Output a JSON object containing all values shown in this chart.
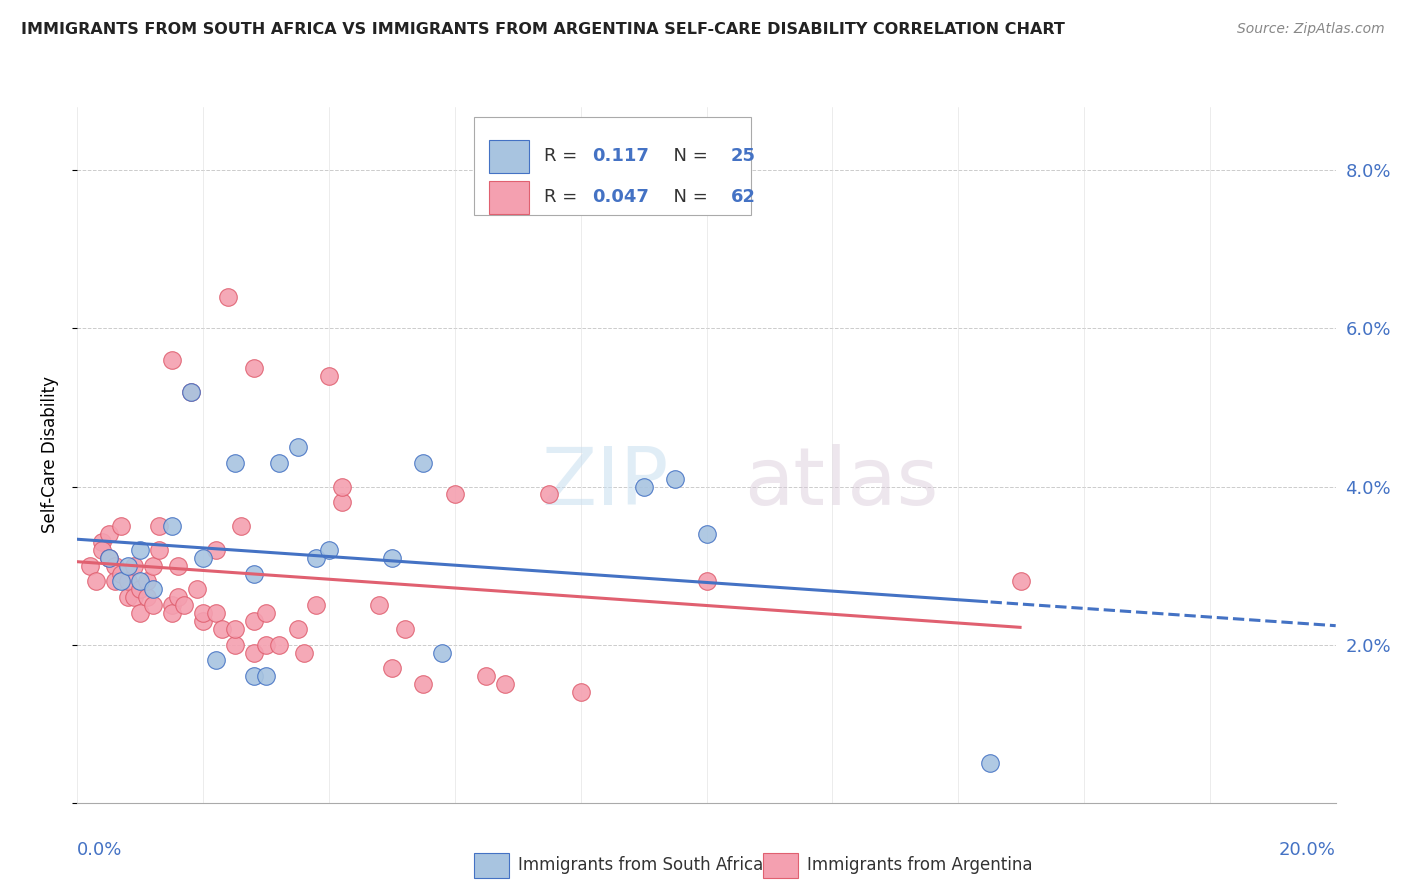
{
  "title": "IMMIGRANTS FROM SOUTH AFRICA VS IMMIGRANTS FROM ARGENTINA SELF-CARE DISABILITY CORRELATION CHART",
  "source": "Source: ZipAtlas.com",
  "ylabel": "Self-Care Disability",
  "yticks": [
    0.0,
    0.02,
    0.04,
    0.06,
    0.08
  ],
  "ytick_labels": [
    "",
    "2.0%",
    "4.0%",
    "6.0%",
    "8.0%"
  ],
  "xlim": [
    0.0,
    0.2
  ],
  "ylim": [
    0.0,
    0.088
  ],
  "legend_label_blue": "Immigrants from South Africa",
  "legend_label_pink": "Immigrants from Argentina",
  "blue_color": "#a8c4e0",
  "pink_color": "#f4a0b0",
  "line_blue": "#4472c4",
  "line_pink": "#e06070",
  "watermark_zip": "ZIP",
  "watermark_atlas": "atlas",
  "blue_scatter": [
    [
      0.005,
      0.031
    ],
    [
      0.007,
      0.028
    ],
    [
      0.008,
      0.03
    ],
    [
      0.01,
      0.028
    ],
    [
      0.01,
      0.032
    ],
    [
      0.012,
      0.027
    ],
    [
      0.015,
      0.035
    ],
    [
      0.018,
      0.052
    ],
    [
      0.02,
      0.031
    ],
    [
      0.022,
      0.018
    ],
    [
      0.025,
      0.043
    ],
    [
      0.028,
      0.029
    ],
    [
      0.028,
      0.016
    ],
    [
      0.03,
      0.016
    ],
    [
      0.032,
      0.043
    ],
    [
      0.035,
      0.045
    ],
    [
      0.038,
      0.031
    ],
    [
      0.04,
      0.032
    ],
    [
      0.05,
      0.031
    ],
    [
      0.055,
      0.043
    ],
    [
      0.058,
      0.019
    ],
    [
      0.09,
      0.04
    ],
    [
      0.095,
      0.041
    ],
    [
      0.1,
      0.034
    ],
    [
      0.145,
      0.005
    ]
  ],
  "pink_scatter": [
    [
      0.002,
      0.03
    ],
    [
      0.003,
      0.028
    ],
    [
      0.004,
      0.033
    ],
    [
      0.004,
      0.032
    ],
    [
      0.005,
      0.034
    ],
    [
      0.005,
      0.031
    ],
    [
      0.006,
      0.03
    ],
    [
      0.006,
      0.028
    ],
    [
      0.007,
      0.029
    ],
    [
      0.007,
      0.035
    ],
    [
      0.008,
      0.026
    ],
    [
      0.008,
      0.028
    ],
    [
      0.009,
      0.026
    ],
    [
      0.009,
      0.03
    ],
    [
      0.01,
      0.027
    ],
    [
      0.01,
      0.024
    ],
    [
      0.011,
      0.026
    ],
    [
      0.011,
      0.028
    ],
    [
      0.012,
      0.025
    ],
    [
      0.012,
      0.03
    ],
    [
      0.013,
      0.035
    ],
    [
      0.013,
      0.032
    ],
    [
      0.015,
      0.025
    ],
    [
      0.015,
      0.024
    ],
    [
      0.016,
      0.03
    ],
    [
      0.016,
      0.026
    ],
    [
      0.017,
      0.025
    ],
    [
      0.018,
      0.052
    ],
    [
      0.019,
      0.027
    ],
    [
      0.02,
      0.023
    ],
    [
      0.02,
      0.024
    ],
    [
      0.022,
      0.032
    ],
    [
      0.022,
      0.024
    ],
    [
      0.023,
      0.022
    ],
    [
      0.024,
      0.064
    ],
    [
      0.025,
      0.02
    ],
    [
      0.025,
      0.022
    ],
    [
      0.026,
      0.035
    ],
    [
      0.028,
      0.023
    ],
    [
      0.028,
      0.019
    ],
    [
      0.03,
      0.024
    ],
    [
      0.03,
      0.02
    ],
    [
      0.032,
      0.02
    ],
    [
      0.035,
      0.022
    ],
    [
      0.036,
      0.019
    ],
    [
      0.038,
      0.025
    ],
    [
      0.04,
      0.054
    ],
    [
      0.042,
      0.038
    ],
    [
      0.042,
      0.04
    ],
    [
      0.048,
      0.025
    ],
    [
      0.05,
      0.017
    ],
    [
      0.052,
      0.022
    ],
    [
      0.055,
      0.015
    ],
    [
      0.06,
      0.039
    ],
    [
      0.065,
      0.016
    ],
    [
      0.068,
      0.015
    ],
    [
      0.075,
      0.039
    ],
    [
      0.08,
      0.014
    ],
    [
      0.1,
      0.028
    ],
    [
      0.15,
      0.028
    ],
    [
      0.028,
      0.055
    ],
    [
      0.015,
      0.056
    ]
  ]
}
